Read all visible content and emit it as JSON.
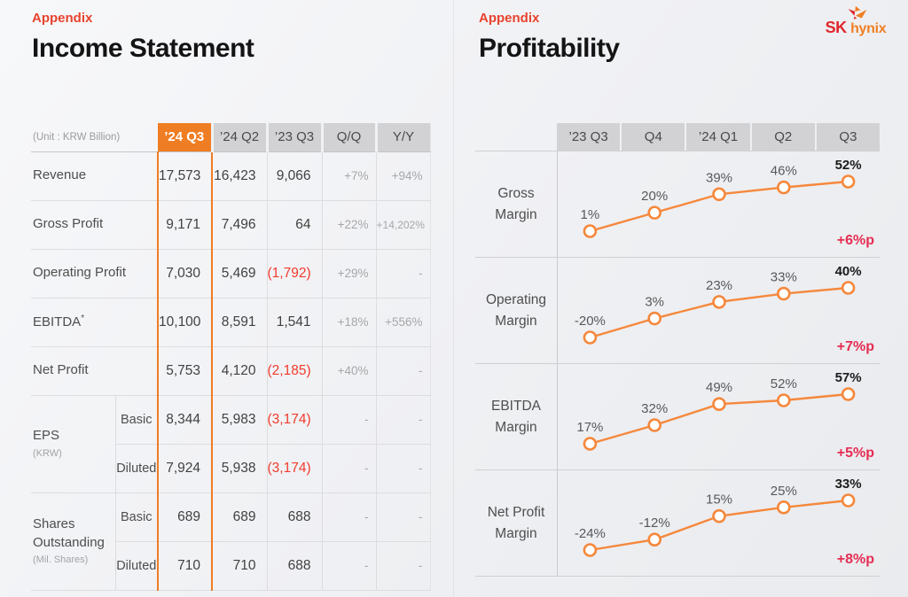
{
  "logo": {
    "sk": "SK",
    "hynix": "hynix"
  },
  "colors": {
    "accent_orange": "#ef7d23",
    "line_orange": "#f5883c",
    "negative_red": "#f23b2d",
    "change_red": "#e62d53",
    "eyebrow_red": "#e8432e",
    "header_gray": "#d2d2d4"
  },
  "left": {
    "eyebrow": "Appendix",
    "title": "Income Statement",
    "unit_label": "(Unit : KRW Billion)",
    "columns": [
      "’24 Q3",
      "’24 Q2",
      "’23 Q3",
      "Q/Q",
      "Y/Y"
    ],
    "rows": [
      {
        "label": "Revenue",
        "values": [
          "17,573",
          "16,423",
          "9,066",
          "+7%",
          "+94%"
        ]
      },
      {
        "label": "Gross Profit",
        "values": [
          "9,171",
          "7,496",
          "64",
          "+22%",
          "+14,202%"
        ]
      },
      {
        "label": "Operating Profit",
        "values": [
          "7,030",
          "5,469",
          "(1,792)",
          "+29%",
          "-"
        ]
      },
      {
        "label": "EBITDA",
        "label_sup": "*",
        "values": [
          "10,100",
          "8,591",
          "1,541",
          "+18%",
          "+556%"
        ]
      },
      {
        "label": "Net Profit",
        "values": [
          "5,753",
          "4,120",
          "(2,185)",
          "+40%",
          "-"
        ]
      }
    ],
    "groups": [
      {
        "label": "EPS",
        "note": "(KRW)",
        "subrows": [
          {
            "sub": "Basic",
            "values": [
              "8,344",
              "5,983",
              "(3,174)",
              "-",
              "-"
            ]
          },
          {
            "sub": "Diluted",
            "values": [
              "7,924",
              "5,938",
              "(3,174)",
              "-",
              "-"
            ]
          }
        ]
      },
      {
        "label": "Shares Outstanding",
        "note": "(Mil. Shares)",
        "subrows": [
          {
            "sub": "Basic",
            "values": [
              "689",
              "689",
              "688",
              "-",
              "-"
            ]
          },
          {
            "sub": "Diluted",
            "values": [
              "710",
              "710",
              "688",
              "-",
              "-"
            ]
          }
        ]
      }
    ]
  },
  "right": {
    "eyebrow": "Appendix",
    "title": "Profitability",
    "columns": [
      "’23 Q3",
      "Q4",
      "’24 Q1",
      "Q2",
      "Q3"
    ]
  },
  "chart_data": [
    {
      "type": "line",
      "name": "Gross Margin",
      "x": [
        "’23 Q3",
        "Q4",
        "’24 Q1",
        "Q2",
        "Q3"
      ],
      "values": [
        1,
        20,
        39,
        46,
        52
      ],
      "labels": [
        "1%",
        "20%",
        "39%",
        "46%",
        "52%"
      ],
      "change": "+6%p",
      "legend": "none",
      "grid": "off"
    },
    {
      "type": "line",
      "name": "Operating Margin",
      "x": [
        "’23 Q3",
        "Q4",
        "’24 Q1",
        "Q2",
        "Q3"
      ],
      "values": [
        -20,
        3,
        23,
        33,
        40
      ],
      "labels": [
        "-20%",
        "3%",
        "23%",
        "33%",
        "40%"
      ],
      "change": "+7%p",
      "legend": "none",
      "grid": "off"
    },
    {
      "type": "line",
      "name": "EBITDA Margin",
      "x": [
        "’23 Q3",
        "Q4",
        "’24 Q1",
        "Q2",
        "Q3"
      ],
      "values": [
        17,
        32,
        49,
        52,
        57
      ],
      "labels": [
        "17%",
        "32%",
        "49%",
        "52%",
        "57%"
      ],
      "change": "+5%p",
      "legend": "none",
      "grid": "off"
    },
    {
      "type": "line",
      "name": "Net Profit Margin",
      "x": [
        "’23 Q3",
        "Q4",
        "’24 Q1",
        "Q2",
        "Q3"
      ],
      "values": [
        -24,
        -12,
        15,
        25,
        33
      ],
      "labels": [
        "-24%",
        "-12%",
        "15%",
        "25%",
        "33%"
      ],
      "change": "+8%p",
      "legend": "none",
      "grid": "off"
    }
  ]
}
